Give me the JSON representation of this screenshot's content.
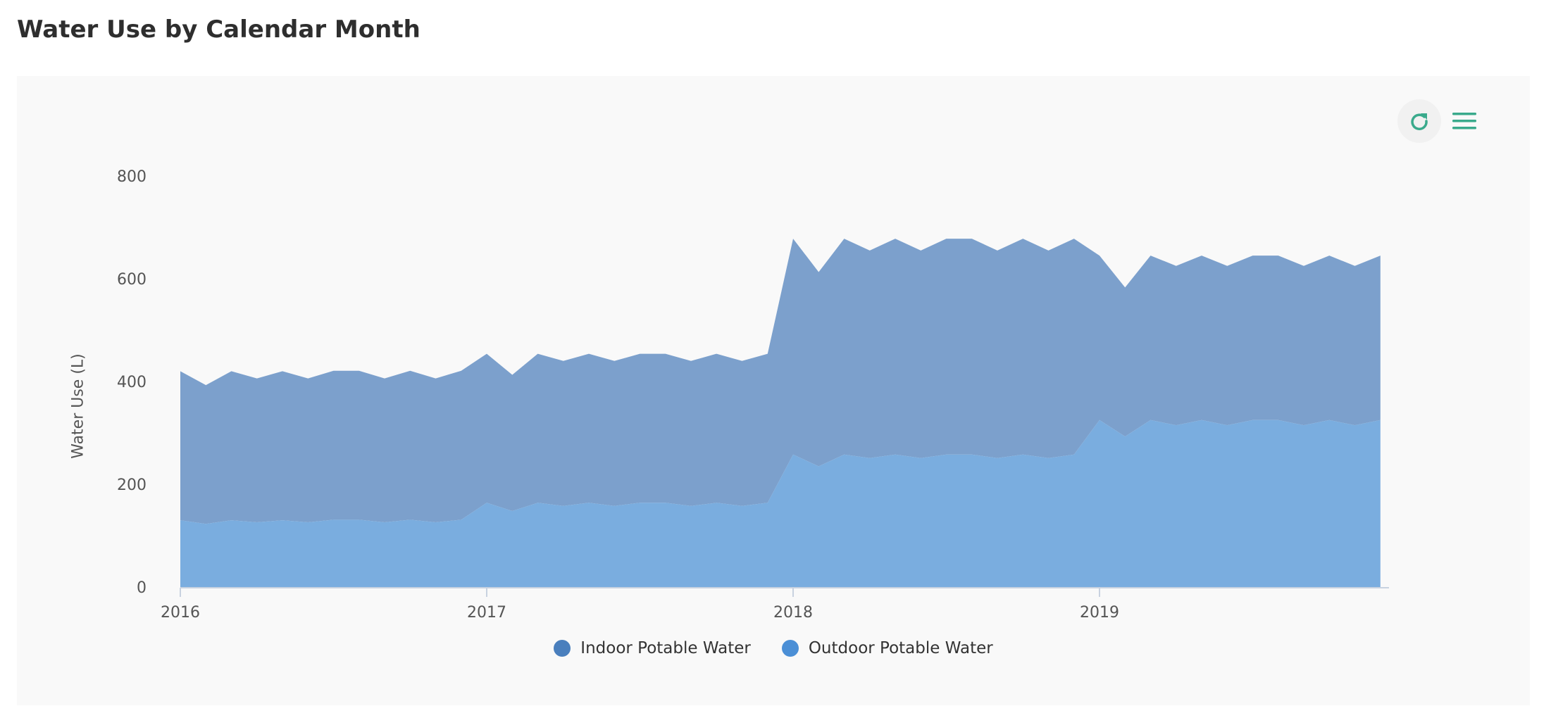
{
  "page": {
    "title": "Water Use by Calendar Month"
  },
  "toolbar": {
    "refresh_icon": "refresh-icon",
    "menu_icon": "hamburger-menu-icon",
    "accent_color": "#3aaa8c"
  },
  "chart_data": {
    "type": "area",
    "stacked": true,
    "title": "Water Use by Calendar Month",
    "ylabel": "Water Use (L)",
    "xlabel": "",
    "ylim": [
      0,
      800
    ],
    "yticks": [
      0,
      200,
      400,
      600,
      800
    ],
    "xticks": [
      "2016",
      "2017",
      "2018",
      "2019"
    ],
    "x_start": "2016-01",
    "x_end": "2019-12",
    "x": [
      "2016-01",
      "2016-02",
      "2016-03",
      "2016-04",
      "2016-05",
      "2016-06",
      "2016-07",
      "2016-08",
      "2016-09",
      "2016-10",
      "2016-11",
      "2016-12",
      "2017-01",
      "2017-02",
      "2017-03",
      "2017-04",
      "2017-05",
      "2017-06",
      "2017-07",
      "2017-08",
      "2017-09",
      "2017-10",
      "2017-11",
      "2017-12",
      "2018-01",
      "2018-02",
      "2018-03",
      "2018-04",
      "2018-05",
      "2018-06",
      "2018-07",
      "2018-08",
      "2018-09",
      "2018-10",
      "2018-11",
      "2018-12",
      "2019-01",
      "2019-02",
      "2019-03",
      "2019-04",
      "2019-05",
      "2019-06",
      "2019-07",
      "2019-08",
      "2019-09",
      "2019-10",
      "2019-11",
      "2019-12"
    ],
    "series": [
      {
        "name": "Indoor Potable Water",
        "color": "#4a7fbd",
        "area_color": "#7ca0cc",
        "values": [
          290,
          270,
          290,
          280,
          290,
          280,
          290,
          290,
          280,
          290,
          280,
          290,
          290,
          265,
          290,
          282,
          290,
          282,
          290,
          290,
          282,
          290,
          282,
          290,
          420,
          378,
          420,
          404,
          420,
          404,
          420,
          420,
          404,
          420,
          404,
          420,
          320,
          290,
          320,
          310,
          320,
          310,
          320,
          320,
          310,
          320,
          310,
          320
        ]
      },
      {
        "name": "Outdoor Potable Water",
        "color": "#4b8fd6",
        "area_color": "#7aaddf",
        "values": [
          130,
          123,
          130,
          126,
          130,
          126,
          131,
          131,
          126,
          131,
          126,
          131,
          164,
          148,
          164,
          158,
          164,
          158,
          164,
          164,
          158,
          164,
          158,
          164,
          258,
          235,
          258,
          251,
          258,
          251,
          258,
          258,
          251,
          258,
          251,
          258,
          325,
          293,
          325,
          315,
          325,
          315,
          325,
          325,
          315,
          325,
          315,
          325
        ]
      }
    ],
    "legend": {
      "position": "bottom-center"
    }
  }
}
